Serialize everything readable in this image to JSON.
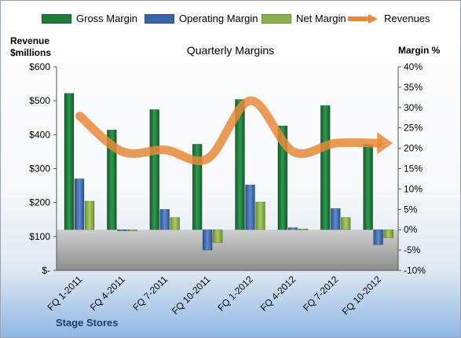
{
  "chart_data": {
    "type": "bar",
    "title": "Quarterly Margins",
    "ylabel_left": "Revenue $millions",
    "ylabel_left_lines": [
      "Revenue",
      "$millions"
    ],
    "ylabel_right": "Margin %",
    "footer": "Stage Stores",
    "categories": [
      "FQ 1-2011",
      "FQ 4-2011",
      "FQ 7-2011",
      "FQ 10-2011",
      "FQ 1-2012",
      "FQ 4-2012",
      "FQ 7-2012",
      "FQ 10-2012"
    ],
    "left_axis": {
      "min": 0,
      "max": 600,
      "ticks": [
        "$-",
        "$100",
        "$200",
        "$300",
        "$400",
        "$500",
        "$600"
      ]
    },
    "right_axis": {
      "min": -10,
      "max": 40,
      "ticks": [
        "-10%",
        "-5%",
        "0%",
        "5%",
        "10%",
        "15%",
        "20%",
        "25%",
        "30%",
        "35%",
        "40%"
      ]
    },
    "series": [
      {
        "name": "Gross Margin",
        "axis": "right",
        "color": "#1e7b3a",
        "values": [
          33.5,
          24.5,
          29.5,
          21.0,
          32.0,
          25.5,
          30.5,
          21.0
        ]
      },
      {
        "name": "Operating Margin",
        "axis": "right",
        "color": "#3a63a8",
        "values": [
          12.5,
          -0.3,
          5.0,
          -5.0,
          11.0,
          0.5,
          5.2,
          -3.7
        ]
      },
      {
        "name": "Net Margin",
        "axis": "right",
        "color": "#8cb04a",
        "values": [
          7.0,
          -0.2,
          3.0,
          -3.2,
          6.8,
          0.2,
          3.0,
          -2.0
        ]
      },
      {
        "name": "Revenues",
        "axis": "left",
        "color": "#e8893a",
        "style": "arrow",
        "values": [
          455,
          350,
          355,
          330,
          500,
          350,
          375,
          375
        ]
      }
    ],
    "legend_position": "top",
    "grid": false
  }
}
